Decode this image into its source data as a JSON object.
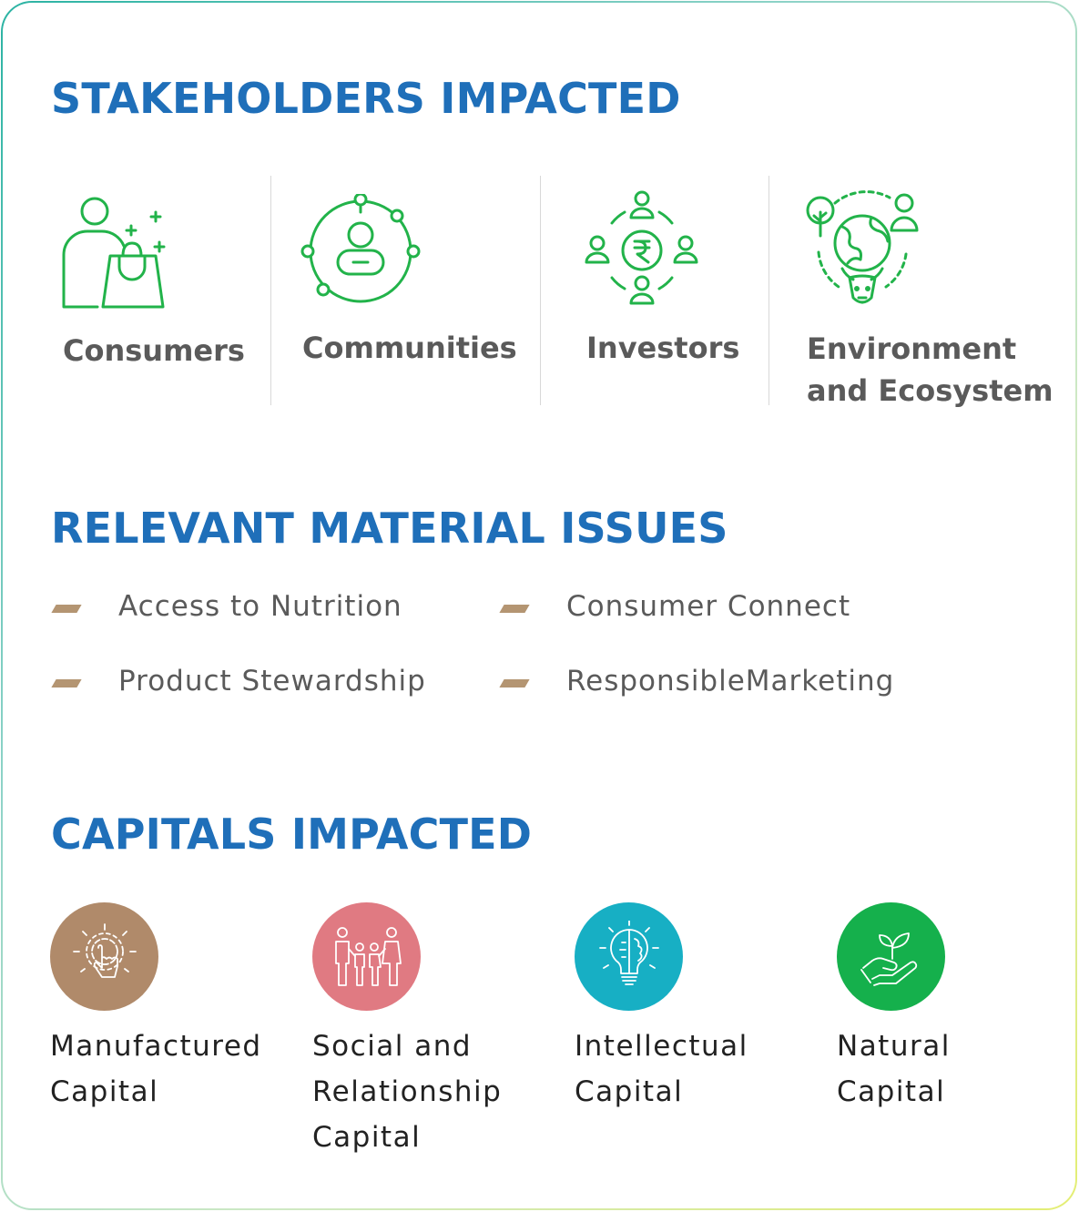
{
  "sections": {
    "stakeholders_title": "STAKEHOLDERS IMPACTED",
    "issues_title": "RELEVANT MATERIAL ISSUES",
    "capitals_title": "CAPITALS IMPACTED"
  },
  "stakeholders": [
    {
      "label": "Consumers",
      "icon": "consumer-shopping-bag-icon"
    },
    {
      "label": "Communities",
      "icon": "community-network-icon"
    },
    {
      "label": "Investors",
      "icon": "investors-rupee-icon"
    },
    {
      "label": "Environment\nand Ecosystem",
      "icon": "environment-globe-icon"
    }
  ],
  "issues": [
    {
      "label": "Access to Nutrition"
    },
    {
      "label": "Consumer Connect"
    },
    {
      "label": "Product Stewardship"
    },
    {
      "label": "ResponsibleMarketing"
    }
  ],
  "capitals": [
    {
      "label": "Manufactured\nCapital",
      "icon": "gear-hand-icon",
      "color": "#b08a6a"
    },
    {
      "label": "Social and\nRelationship\nCapital",
      "icon": "people-group-icon",
      "color": "#e07a82"
    },
    {
      "label": "Intellectual\nCapital",
      "icon": "lightbulb-brain-icon",
      "color": "#17afc4"
    },
    {
      "label": "Natural\nCapital",
      "icon": "hand-plant-icon",
      "color": "#15b04c"
    }
  ],
  "colors": {
    "title": "#1f6fb9",
    "icon_green": "#22b34a",
    "bullet": "#b49572"
  }
}
